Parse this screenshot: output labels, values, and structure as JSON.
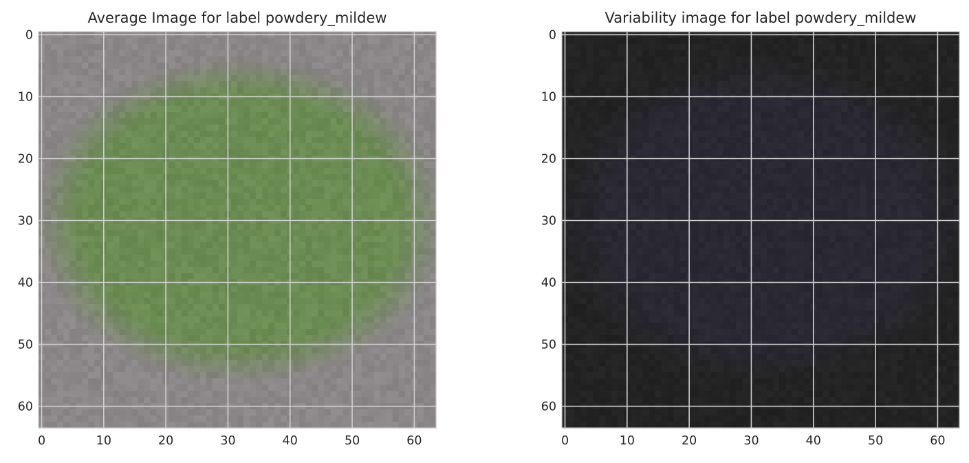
{
  "chart_data": [
    {
      "type": "heatmap",
      "title": "Average Image for label powdery_mildew",
      "image_size": [
        64,
        64
      ],
      "xlim": [
        -0.5,
        63.5
      ],
      "ylim": [
        63.5,
        -0.5
      ],
      "x_ticks": [
        0,
        10,
        20,
        30,
        40,
        50,
        60
      ],
      "y_ticks": [
        0,
        10,
        20,
        30,
        40,
        50,
        60
      ],
      "grid": true,
      "background_color": "#8b8687",
      "subject_color": "#6b8c52",
      "subject_center": [
        32,
        30
      ],
      "subject_radius": [
        30,
        24
      ]
    },
    {
      "type": "heatmap",
      "title": "Variability image for label powdery_mildew",
      "image_size": [
        64,
        64
      ],
      "xlim": [
        -0.5,
        63.5
      ],
      "ylim": [
        63.5,
        -0.5
      ],
      "x_ticks": [
        0,
        10,
        20,
        30,
        40,
        50,
        60
      ],
      "y_ticks": [
        0,
        10,
        20,
        30,
        40,
        50,
        60
      ],
      "grid": true,
      "background_color": "#232323",
      "subject_color": "#2a2832",
      "subject_center": [
        32,
        30
      ],
      "subject_radius": [
        30,
        24
      ]
    }
  ]
}
